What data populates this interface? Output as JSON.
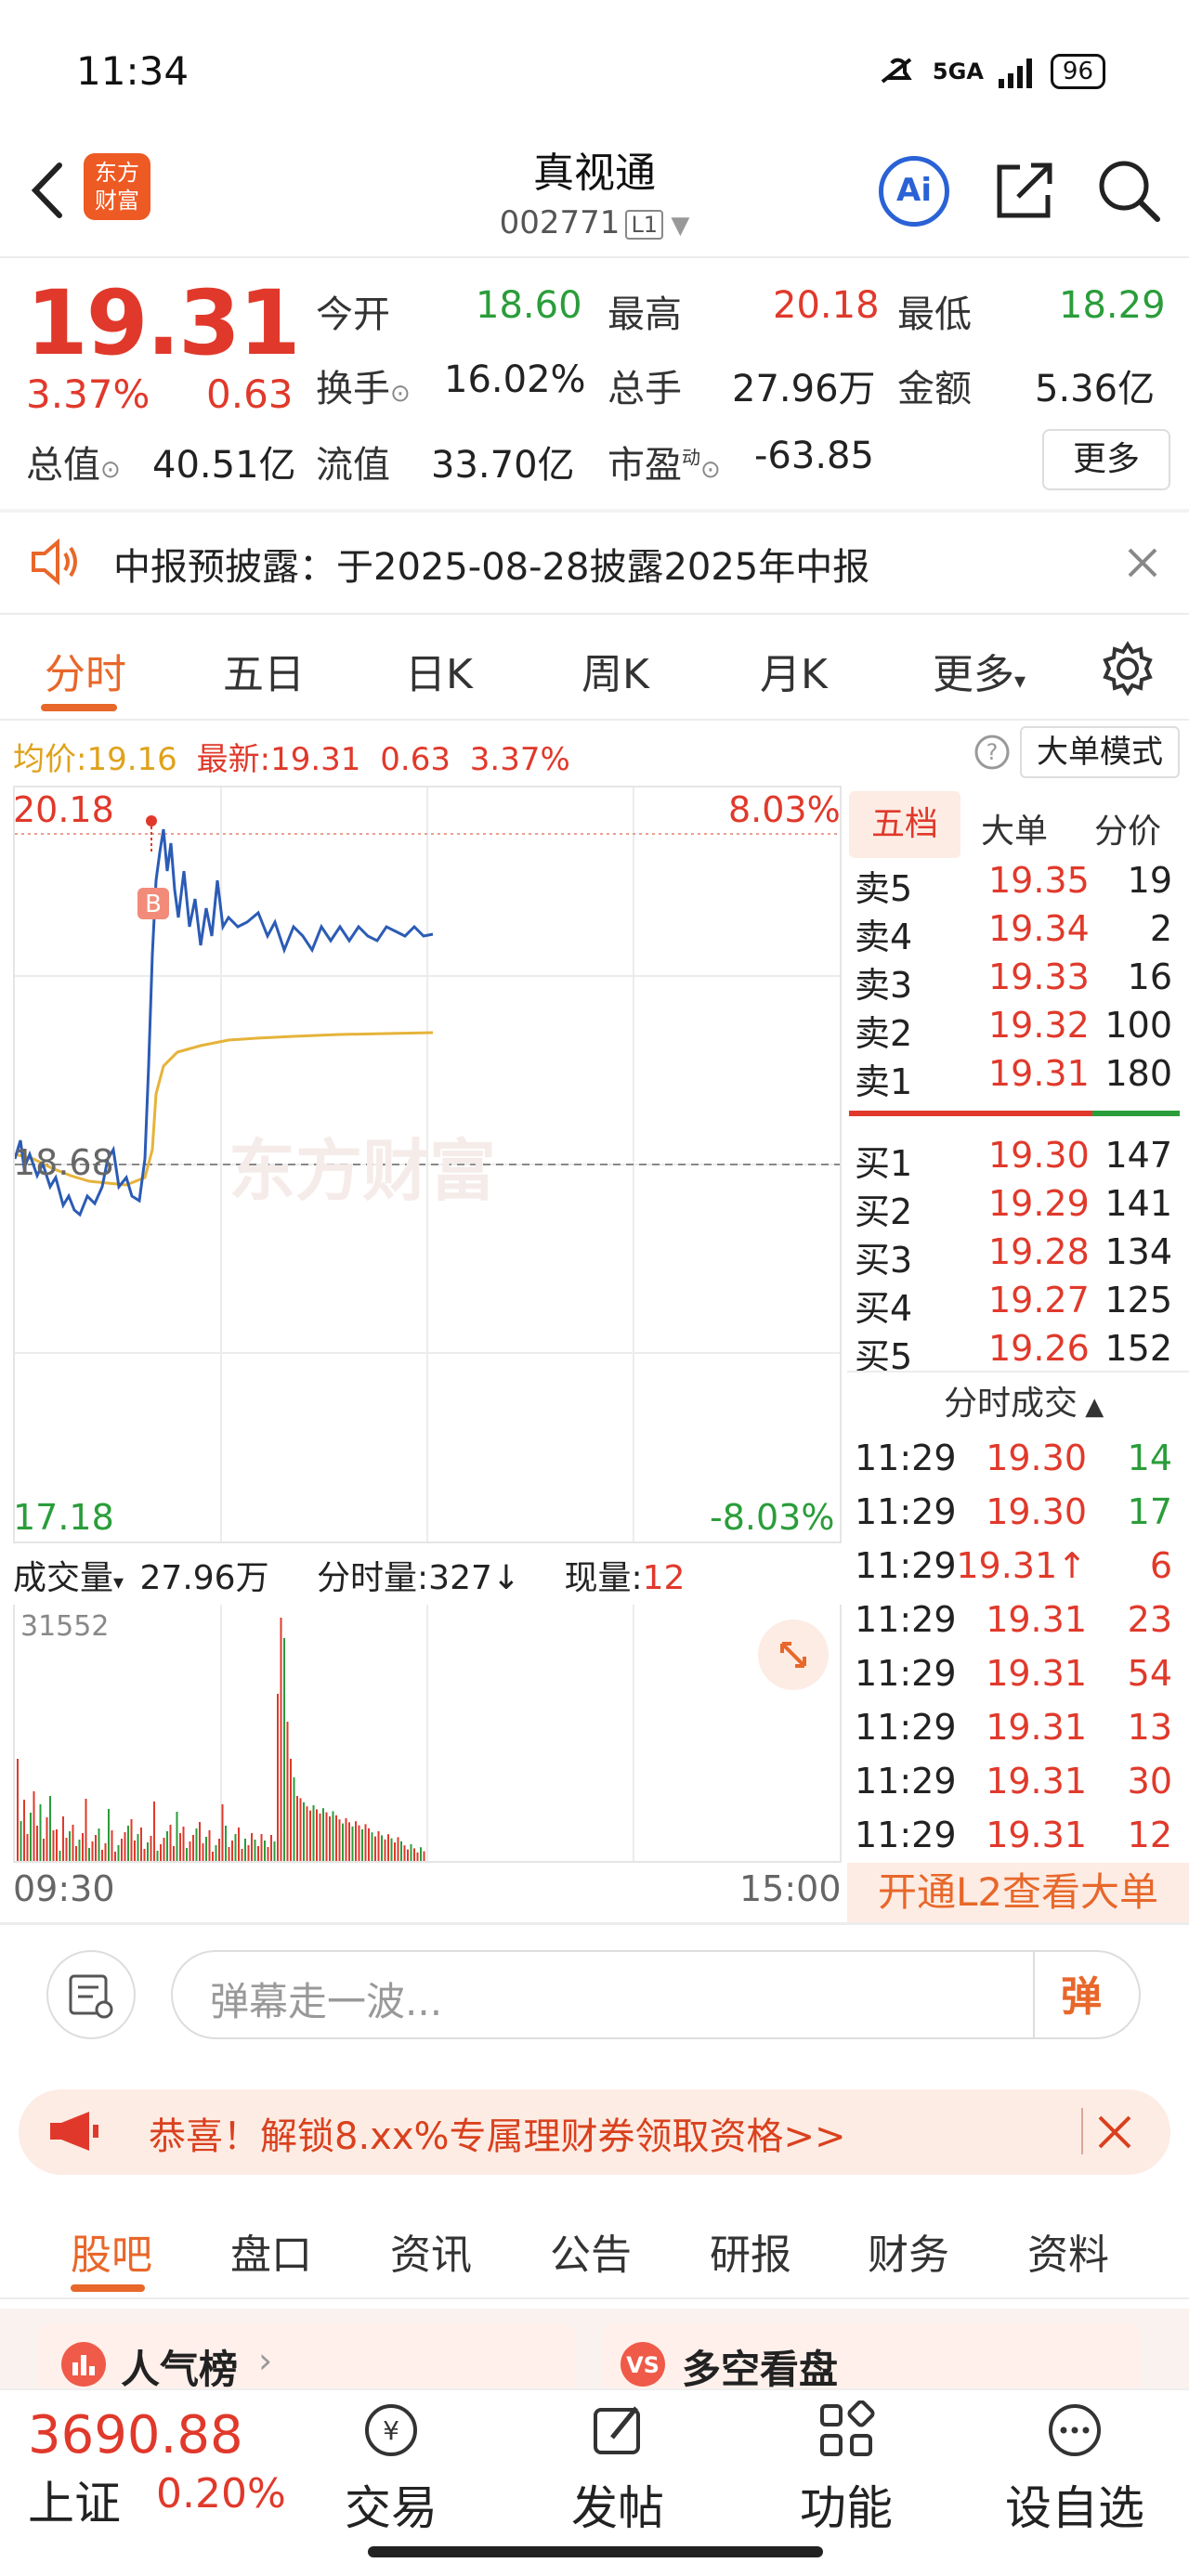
{
  "status_bar": {
    "time": "11:34",
    "network": "5GA",
    "battery": "96"
  },
  "header": {
    "logo_line1": "东方",
    "logo_line2": "财富",
    "title": "真视通",
    "code": "002771",
    "level": "L1",
    "ai_label": "Ai"
  },
  "quote": {
    "price": "19.31",
    "change_pct": "3.37%",
    "change": "0.63",
    "open_label": "今开",
    "open": "18.60",
    "high_label": "最高",
    "high": "20.18",
    "low_label": "最低",
    "low": "18.29",
    "turnover_label": "换手",
    "turnover": "16.02%",
    "volume_label": "总手",
    "volume": "27.96万",
    "amount_label": "金额",
    "amount": "5.36亿",
    "total_mv_label": "总值",
    "total_mv": "40.51亿",
    "float_mv_label": "流值",
    "float_mv": "33.70亿",
    "pe_label": "市盈",
    "pe_sup": "动",
    "pe": "-63.85",
    "more": "更多"
  },
  "notice": {
    "text": "中报预披露：于2025-08-28披露2025年中报"
  },
  "tabs": [
    "分时",
    "五日",
    "日K",
    "周K",
    "月K",
    "更多"
  ],
  "chart_header": {
    "avg_label": "均价:",
    "avg": "19.16",
    "latest_label": "最新:",
    "latest": "19.31",
    "change": "0.63",
    "pct": "3.37%",
    "big_mode": "大单模式"
  },
  "chart": {
    "y_top": "20.18",
    "y_mid": "18.68",
    "y_bottom": "17.18",
    "pct_top": "8.03%",
    "pct_bottom": "-8.03%",
    "watermark": "东方财富",
    "marker": "B"
  },
  "volume_header": {
    "label": "成交量",
    "total": "27.96万",
    "minute_vol": "分时量:327",
    "current_label": "现量:",
    "current": "12",
    "max": "31552"
  },
  "time_axis": {
    "start": "09:30",
    "end": "15:00"
  },
  "orderbook": {
    "tabs": [
      "五档",
      "大单",
      "分价"
    ],
    "asks": [
      {
        "label": "卖5",
        "price": "19.35",
        "vol": "19"
      },
      {
        "label": "卖4",
        "price": "19.34",
        "vol": "2"
      },
      {
        "label": "卖3",
        "price": "19.33",
        "vol": "16"
      },
      {
        "label": "卖2",
        "price": "19.32",
        "vol": "100"
      },
      {
        "label": "卖1",
        "price": "19.31",
        "vol": "180"
      }
    ],
    "bids": [
      {
        "label": "买1",
        "price": "19.30",
        "vol": "147"
      },
      {
        "label": "买2",
        "price": "19.29",
        "vol": "141"
      },
      {
        "label": "买3",
        "price": "19.28",
        "vol": "134"
      },
      {
        "label": "买4",
        "price": "19.27",
        "vol": "125"
      },
      {
        "label": "买5",
        "price": "19.26",
        "vol": "152"
      }
    ],
    "trades_title": "分时成交",
    "trades": [
      {
        "time": "11:29",
        "price": "19.30",
        "vol": "14"
      },
      {
        "time": "11:29",
        "price": "19.30",
        "vol": "17"
      },
      {
        "time": "11:29",
        "price": "19.31↑",
        "vol": "6"
      },
      {
        "time": "11:29",
        "price": "19.31",
        "vol": "23"
      },
      {
        "time": "11:29",
        "price": "19.31",
        "vol": "54"
      },
      {
        "time": "11:29",
        "price": "19.31",
        "vol": "13"
      },
      {
        "time": "11:29",
        "price": "19.31",
        "vol": "30"
      },
      {
        "time": "11:29",
        "price": "19.31",
        "vol": "12"
      }
    ],
    "l2_banner": "开通L2查看大单"
  },
  "comment": {
    "placeholder": "弹幕走一波...",
    "send": "弹"
  },
  "promo": {
    "text": "恭喜！解锁8.xx%专属理财券领取资格>>"
  },
  "bottom_tabs": [
    "股吧",
    "盘口",
    "资讯",
    "公告",
    "研报",
    "财务",
    "资料"
  ],
  "cards": {
    "popular": "人气榜",
    "bull_bear": "多空看盘"
  },
  "index": {
    "value": "3690.88",
    "name": "上证",
    "pct": "0.20%"
  },
  "nav": [
    "交易",
    "发帖",
    "功能",
    "设自选"
  ]
}
